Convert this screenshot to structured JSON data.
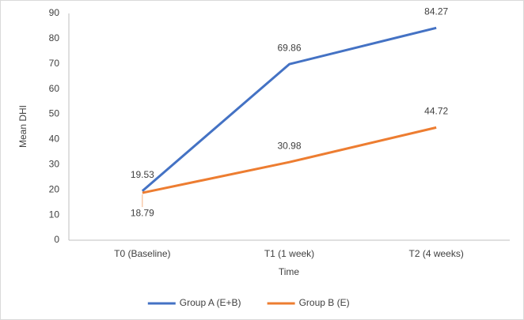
{
  "chart_data": {
    "type": "line",
    "x_label": "Time",
    "y_label": "Mean DHI",
    "categories": [
      "T0 (Baseline)",
      "T1 (1 week)",
      "T2 (4 weeks)"
    ],
    "series": [
      {
        "name": "Group A (E+B)",
        "color": "#4472c4",
        "values": [
          19.53,
          69.86,
          84.27
        ]
      },
      {
        "name": "Group B (E)",
        "color": "#ed7d31",
        "values": [
          18.79,
          30.98,
          44.72
        ]
      }
    ],
    "ylim": [
      0,
      90
    ],
    "yticks": [
      0,
      10,
      20,
      30,
      40,
      50,
      60,
      70,
      80,
      90
    ],
    "legend": "bottom"
  }
}
